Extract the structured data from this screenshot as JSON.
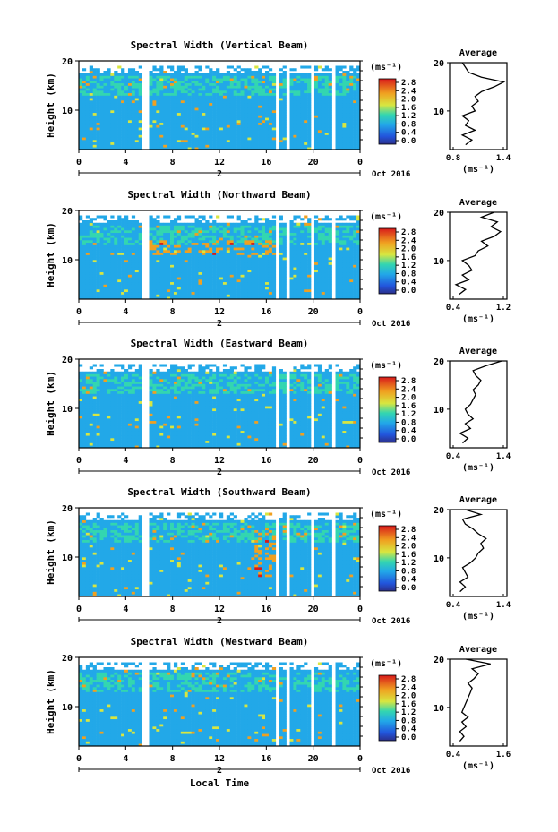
{
  "figure": {
    "common": {
      "y_ticks": [
        "20",
        "10"
      ],
      "x_ticks": [
        "0",
        "4",
        "8",
        "12",
        "16",
        "20",
        "0"
      ],
      "x_date_label": "2",
      "month_label": "Oct 2016",
      "ylabel": "Height (km)",
      "xlabel": "Local Time",
      "colorbar_unit": "(ms⁻¹)",
      "colorbar_ticks": [
        "2.8",
        "2.4",
        "2.0",
        "1.6",
        "1.2",
        "0.8",
        "0.4",
        "0.0"
      ],
      "avg_title": "Average",
      "avg_ticks_y": [
        "20",
        "10"
      ],
      "avg_unit": "(ms⁻¹)"
    },
    "colors": {
      "low": "#1f3fd8",
      "mid": "#25b0e8",
      "high": "#e83a1f",
      "line": "#000000"
    }
  },
  "chart_data": [
    {
      "type": "heatmap",
      "title": "Spectral Width (Vertical Beam)",
      "xlabel": "Local Time",
      "ylabel": "Height (km)",
      "xlim": [
        0,
        24
      ],
      "ylim": [
        2,
        20
      ],
      "colorbar_range": [
        0.0,
        3.0
      ],
      "data_gaps_hours": [
        [
          5.4,
          6.0
        ],
        [
          16.8,
          17.1
        ],
        [
          17.6,
          18.0
        ],
        [
          19.8,
          20.2
        ],
        [
          21.7,
          22.0
        ]
      ],
      "average_profile": {
        "xlabel": "(ms⁻¹)",
        "x_ticks": [
          "0.8",
          "1.4"
        ],
        "xlim": [
          0.6,
          1.5
        ],
        "height": [
          3,
          4,
          5,
          6,
          7,
          8,
          9,
          10,
          11,
          12,
          13,
          14,
          15,
          16,
          17,
          18,
          19,
          20
        ],
        "value": [
          0.85,
          0.95,
          0.8,
          1.0,
          0.85,
          0.9,
          0.8,
          1.0,
          0.95,
          1.05,
          1.0,
          1.1,
          1.3,
          1.45,
          1.1,
          0.9,
          0.85,
          0.8
        ]
      }
    },
    {
      "type": "heatmap",
      "title": "Spectral Width (Northward Beam)",
      "xlabel": "Local Time",
      "ylabel": "Height (km)",
      "xlim": [
        0,
        24
      ],
      "ylim": [
        2,
        20
      ],
      "colorbar_range": [
        0.0,
        3.0
      ],
      "data_gaps_hours": [
        [
          5.4,
          6.0
        ],
        [
          16.8,
          17.1
        ],
        [
          17.6,
          18.0
        ],
        [
          19.8,
          20.2
        ],
        [
          21.7,
          22.0
        ]
      ],
      "average_profile": {
        "xlabel": "(ms⁻¹)",
        "x_ticks": [
          "0.4",
          "1.2"
        ],
        "xlim": [
          0.4,
          1.3
        ],
        "height": [
          3,
          4,
          5,
          6,
          7,
          8,
          9,
          10,
          11,
          12,
          13,
          14,
          15,
          16,
          17,
          18,
          19,
          20
        ],
        "value": [
          0.55,
          0.65,
          0.5,
          0.7,
          0.6,
          0.75,
          0.7,
          0.6,
          0.8,
          0.85,
          1.0,
          0.9,
          1.1,
          1.2,
          1.05,
          1.15,
          0.9,
          1.1
        ]
      }
    },
    {
      "type": "heatmap",
      "title": "Spectral Width (Eastward Beam)",
      "xlabel": "Local Time",
      "ylabel": "Height (km)",
      "xlim": [
        0,
        24
      ],
      "ylim": [
        2,
        20
      ],
      "colorbar_range": [
        0.0,
        3.0
      ],
      "data_gaps_hours": [
        [
          5.4,
          6.0
        ],
        [
          16.8,
          17.1
        ],
        [
          17.6,
          18.0
        ],
        [
          19.8,
          20.2
        ],
        [
          21.7,
          22.0
        ]
      ],
      "average_profile": {
        "xlabel": "(ms⁻¹)",
        "x_ticks": [
          "0.4",
          "1.4"
        ],
        "xlim": [
          0.4,
          1.5
        ],
        "height": [
          3,
          4,
          5,
          6,
          7,
          8,
          9,
          10,
          11,
          12,
          13,
          14,
          15,
          16,
          17,
          18,
          19,
          20
        ],
        "value": [
          0.65,
          0.75,
          0.6,
          0.8,
          0.7,
          0.85,
          0.75,
          0.7,
          0.8,
          0.85,
          0.9,
          0.85,
          0.95,
          1.0,
          0.9,
          0.85,
          1.1,
          1.4
        ]
      }
    },
    {
      "type": "heatmap",
      "title": "Spectral Width (Southward Beam)",
      "xlabel": "Local Time",
      "ylabel": "Height (km)",
      "xlim": [
        0,
        24
      ],
      "ylim": [
        2,
        20
      ],
      "colorbar_range": [
        0.0,
        3.0
      ],
      "data_gaps_hours": [
        [
          5.4,
          6.0
        ],
        [
          16.8,
          17.1
        ],
        [
          17.6,
          18.0
        ],
        [
          19.8,
          20.2
        ],
        [
          21.7,
          22.0
        ]
      ],
      "average_profile": {
        "xlabel": "(ms⁻¹)",
        "x_ticks": [
          "0.4",
          "1.4"
        ],
        "xlim": [
          0.4,
          1.5
        ],
        "height": [
          3,
          4,
          5,
          6,
          7,
          8,
          9,
          10,
          11,
          12,
          13,
          14,
          15,
          16,
          17,
          18,
          19,
          20
        ],
        "value": [
          0.6,
          0.7,
          0.6,
          0.75,
          0.7,
          0.65,
          0.8,
          0.9,
          0.95,
          1.05,
          1.0,
          1.1,
          0.95,
          0.85,
          0.7,
          0.65,
          1.0,
          0.7
        ]
      }
    },
    {
      "type": "heatmap",
      "title": "Spectral Width (Westward Beam)",
      "xlabel": "Local Time",
      "ylabel": "Height (km)",
      "xlim": [
        0,
        24
      ],
      "ylim": [
        2,
        20
      ],
      "colorbar_range": [
        0.0,
        3.0
      ],
      "data_gaps_hours": [
        [
          5.4,
          6.0
        ],
        [
          16.8,
          17.1
        ],
        [
          17.6,
          18.0
        ],
        [
          19.8,
          20.2
        ],
        [
          21.7,
          22.0
        ]
      ],
      "average_profile": {
        "xlabel": "(ms⁻¹)",
        "x_ticks": [
          "0.4",
          "1.6"
        ],
        "xlim": [
          0.3,
          1.7
        ],
        "height": [
          3,
          4,
          5,
          6,
          7,
          8,
          9,
          10,
          11,
          12,
          13,
          14,
          15,
          16,
          17,
          18,
          19,
          20
        ],
        "value": [
          0.55,
          0.65,
          0.55,
          0.7,
          0.6,
          0.75,
          0.6,
          0.65,
          0.7,
          0.75,
          0.8,
          0.85,
          0.75,
          0.9,
          1.0,
          0.85,
          1.3,
          0.7
        ]
      }
    }
  ]
}
